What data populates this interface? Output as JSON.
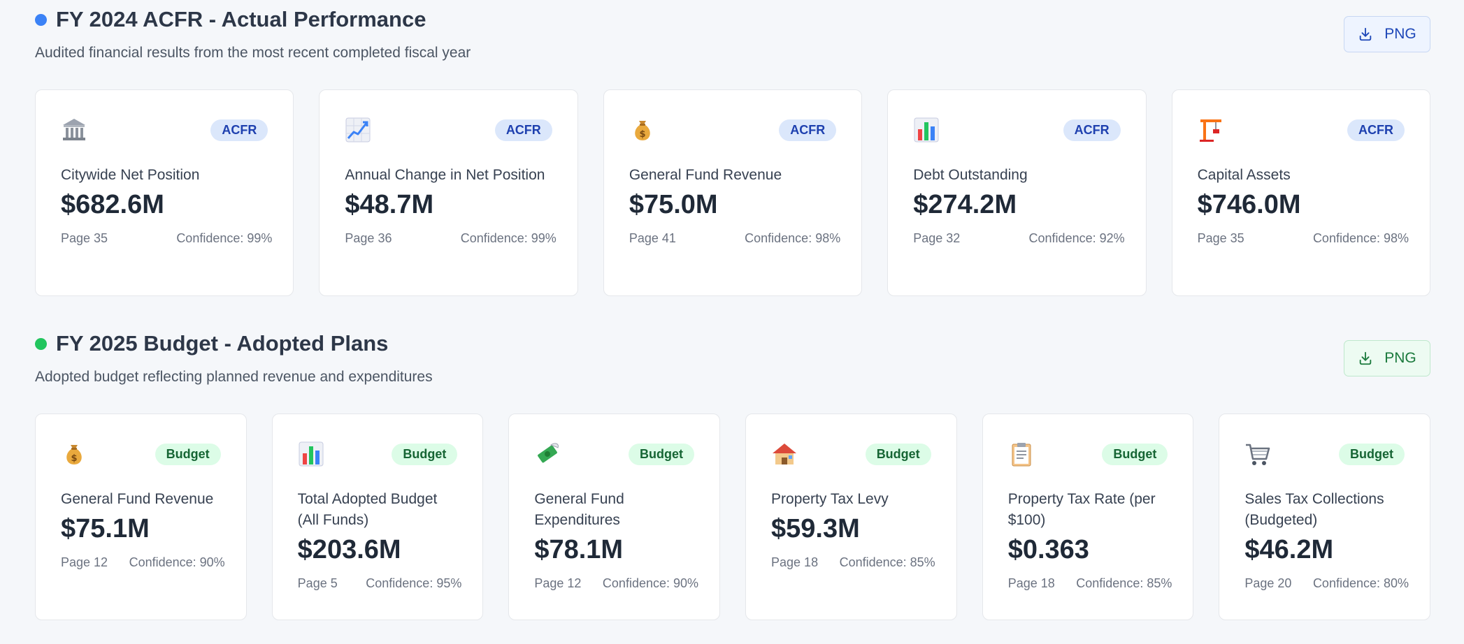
{
  "acfr": {
    "title": "FY 2024 ACFR - Actual Performance",
    "subtitle": "Audited financial results from the most recent completed fiscal year",
    "export_label": "PNG",
    "dot_color": "#3b82f6",
    "cards": [
      {
        "icon": "bank-icon",
        "badge": "ACFR",
        "label": "Citywide Net Position",
        "value": "$682.6M",
        "page": "Page 35",
        "confidence": "Confidence: 99%"
      },
      {
        "icon": "chart-increasing-icon",
        "badge": "ACFR",
        "label": "Annual Change in Net Position",
        "value": "$48.7M",
        "page": "Page 36",
        "confidence": "Confidence: 99%"
      },
      {
        "icon": "money-bag-icon",
        "badge": "ACFR",
        "label": "General Fund Revenue",
        "value": "$75.0M",
        "page": "Page 41",
        "confidence": "Confidence: 98%"
      },
      {
        "icon": "bar-chart-icon",
        "badge": "ACFR",
        "label": "Debt Outstanding",
        "value": "$274.2M",
        "page": "Page 32",
        "confidence": "Confidence: 92%"
      },
      {
        "icon": "construction-crane-icon",
        "badge": "ACFR",
        "label": "Capital Assets",
        "value": "$746.0M",
        "page": "Page 35",
        "confidence": "Confidence: 98%"
      }
    ]
  },
  "budget": {
    "title": "FY 2025 Budget - Adopted Plans",
    "subtitle": "Adopted budget reflecting planned revenue and expenditures",
    "export_label": "PNG",
    "dot_color": "#22c55e",
    "cards": [
      {
        "icon": "money-bag-icon",
        "badge": "Budget",
        "label": "General Fund Revenue",
        "value": "$75.1M",
        "page": "Page 12",
        "confidence": "Confidence: 90%"
      },
      {
        "icon": "bar-chart-icon",
        "badge": "Budget",
        "label": "Total Adopted Budget (All Funds)",
        "value": "$203.6M",
        "page": "Page 5",
        "confidence": "Confidence: 95%"
      },
      {
        "icon": "money-with-wings-icon",
        "badge": "Budget",
        "label": "General Fund Expenditures",
        "value": "$78.1M",
        "page": "Page 12",
        "confidence": "Confidence: 90%"
      },
      {
        "icon": "house-icon",
        "badge": "Budget",
        "label": "Property Tax Levy",
        "value": "$59.3M",
        "page": "Page 18",
        "confidence": "Confidence: 85%"
      },
      {
        "icon": "clipboard-icon",
        "badge": "Budget",
        "label": "Property Tax Rate (per $100)",
        "value": "$0.363",
        "page": "Page 18",
        "confidence": "Confidence: 85%"
      },
      {
        "icon": "shopping-cart-icon",
        "badge": "Budget",
        "label": "Sales Tax Collections (Budgeted)",
        "value": "$46.2M",
        "page": "Page 20",
        "confidence": "Confidence: 80%"
      }
    ]
  }
}
